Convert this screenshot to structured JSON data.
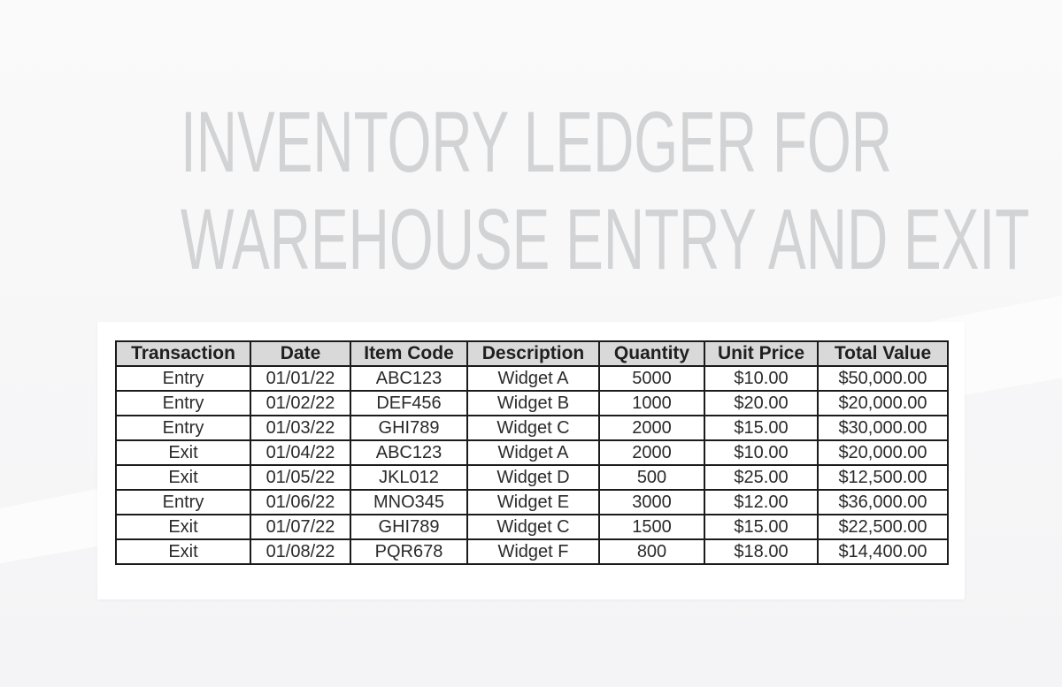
{
  "title": {
    "line1": "INVENTORY LEDGER FOR",
    "line2": "WAREHOUSE ENTRY AND EXIT"
  },
  "table": {
    "columns": [
      "Transaction",
      "Date",
      "Item Code",
      "Description",
      "Quantity",
      "Unit Price",
      "Total Value"
    ],
    "rows": [
      [
        "Entry",
        "01/01/22",
        "ABC123",
        "Widget A",
        "5000",
        "$10.00",
        "$50,000.00"
      ],
      [
        "Entry",
        "01/02/22",
        "DEF456",
        "Widget B",
        "1000",
        "$20.00",
        "$20,000.00"
      ],
      [
        "Entry",
        "01/03/22",
        "GHI789",
        "Widget C",
        "2000",
        "$15.00",
        "$30,000.00"
      ],
      [
        "Exit",
        "01/04/22",
        "ABC123",
        "Widget A",
        "2000",
        "$10.00",
        "$20,000.00"
      ],
      [
        "Exit",
        "01/05/22",
        "JKL012",
        "Widget D",
        "500",
        "$25.00",
        "$12,500.00"
      ],
      [
        "Entry",
        "01/06/22",
        "MNO345",
        "Widget E",
        "3000",
        "$12.00",
        "$36,000.00"
      ],
      [
        "Exit",
        "01/07/22",
        "GHI789",
        "Widget C",
        "1500",
        "$15.00",
        "$22,500.00"
      ],
      [
        "Exit",
        "01/08/22",
        "PQR678",
        "Widget F",
        "800",
        "$18.00",
        "$14,400.00"
      ]
    ]
  },
  "colors": {
    "page_background_top": "#fafafa",
    "page_background_bottom": "#f4f4f6",
    "diagonal_band": "#fcfcfd",
    "panel_background": "#ffffff",
    "header_background": "#d9d9d9",
    "table_border": "#1b1b1b",
    "cell_text": "#2a2a2a",
    "title_text": "#d2d3d5"
  }
}
